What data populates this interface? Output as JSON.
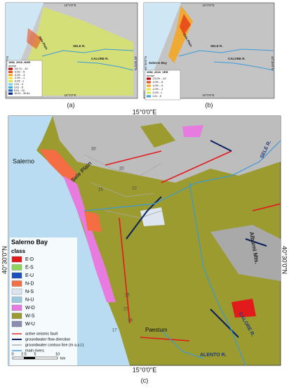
{
  "panel_a": {
    "caption": "(a)",
    "lon_label": "15°0'0\"E",
    "lat_label": "40°30'0\"N",
    "places": [
      "Sele Plain",
      "SELE R.",
      "CALORE R."
    ],
    "legend": {
      "title": "1992_2010_HOR",
      "unit": "mm/yr",
      "classes": [
        {
          "label": "-34.74 - -10",
          "color": "#c00000"
        },
        {
          "label": "-9.99 - -5",
          "color": "#e8501c"
        },
        {
          "label": "-4.99 - -3",
          "color": "#f5a623"
        },
        {
          "label": "-2.99 - -1",
          "color": "#f3e23a"
        },
        {
          "label": "-0.99 - 1",
          "color": "#d6e85a"
        },
        {
          "label": "1.01 - 3",
          "color": "#7fd3e0"
        },
        {
          "label": "3.01 - 5",
          "color": "#3fa7e0"
        },
        {
          "label": "5.01 - 10",
          "color": "#1f63c4"
        },
        {
          "label": "10.01 - 30.64",
          "color": "#0a2a8a"
        }
      ]
    }
  },
  "panel_b": {
    "caption": "(b)",
    "lon_label": "15°0'0\"E",
    "lat_label": "40°30'0\"N",
    "places": [
      "Salerno Bay",
      "Sele Plain",
      "SELE R.",
      "CALORE R."
    ],
    "legend": {
      "title": "1992_2010_VER",
      "unit": "mm/yr",
      "classes": [
        {
          "label": "-23.09 - -10",
          "color": "#c00000"
        },
        {
          "label": "-9.99 - -5",
          "color": "#e8501c"
        },
        {
          "label": "-4.99 - -3",
          "color": "#f5a623"
        },
        {
          "label": "-2.99 - -1",
          "color": "#f3e23a"
        },
        {
          "label": "-0.99 - 1",
          "color": "#d6e85a"
        },
        {
          "label": "1.01 - 5",
          "color": "#3fa7e0"
        }
      ]
    }
  },
  "panel_c": {
    "caption": "(c)",
    "lon_label": "15°0'0\"E",
    "lat_label": "40°30'0\"N",
    "places": [
      "Salerno",
      "Sele Plain",
      "SELE R.",
      "Alburni Mts.",
      "Paestum",
      "CALORE R.",
      "ALENTO R."
    ],
    "contours": [
      "30",
      "20",
      "10",
      "15",
      "25",
      "27",
      "19",
      "17"
    ],
    "legend": {
      "heading": "Salerno Bay",
      "title": "class",
      "classes": [
        {
          "label": "E-D",
          "color": "#e31a1c"
        },
        {
          "label": "E-S",
          "color": "#8fd45b"
        },
        {
          "label": "E-U",
          "color": "#1f4fbf"
        },
        {
          "label": "N-D",
          "color": "#f46d43"
        },
        {
          "label": "N-S",
          "color": "#dde6f0"
        },
        {
          "label": "N-U",
          "color": "#9ecae1"
        },
        {
          "label": "W-D",
          "color": "#e87be0"
        },
        {
          "label": "W-S",
          "color": "#9b9b2f"
        },
        {
          "label": "W-U",
          "color": "#8c8cb0"
        }
      ],
      "lines": [
        {
          "label": "active seismic fault",
          "color": "#e31a1c"
        },
        {
          "label": "groundwater flow direction",
          "color": "#0b1f5c"
        },
        {
          "label": "groundwater contour line (m a.s.l.)",
          "color": "#a8a8a8"
        },
        {
          "label": "main rivers",
          "color": "#3a9ad9"
        }
      ]
    },
    "scale": {
      "ticks": [
        "0",
        "2.5",
        "5",
        "10"
      ],
      "unit": "km"
    }
  }
}
